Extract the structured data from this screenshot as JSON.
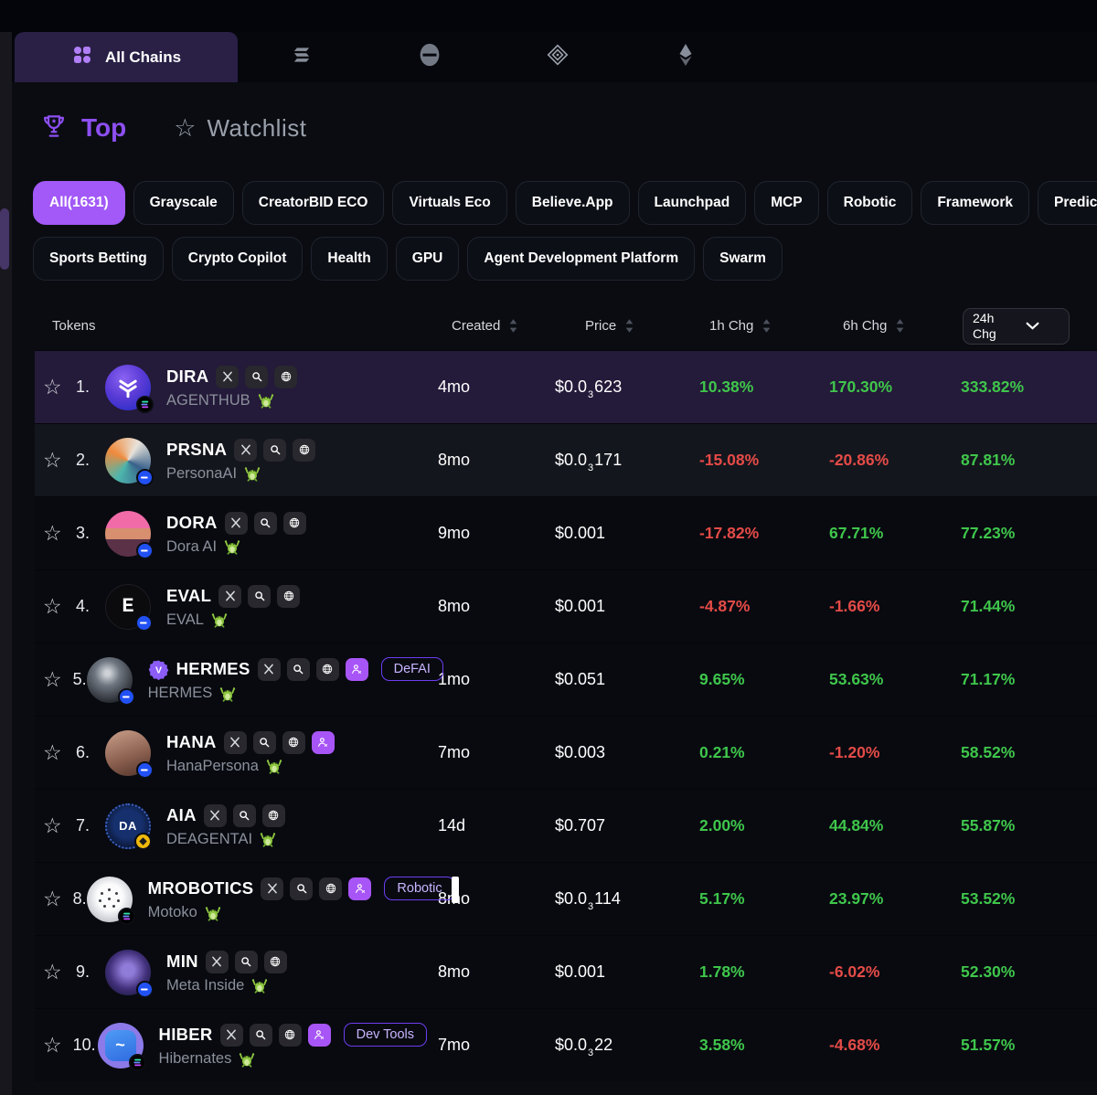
{
  "colors": {
    "positive": "#3fc64b",
    "negative": "#e44b47",
    "accent": "#a259f7",
    "highlight_row": "#241a39"
  },
  "chainbar": {
    "all_chains_label": "All Chains",
    "chains": [
      {
        "name": "solana"
      },
      {
        "name": "circle-chain"
      },
      {
        "name": "ornate-diamond-chain"
      },
      {
        "name": "ethereum"
      }
    ]
  },
  "view_tabs": {
    "top_label": "Top",
    "watchlist_label": "Watchlist"
  },
  "filters": {
    "row1": [
      {
        "label": "All(1631)",
        "active": true
      },
      {
        "label": "Grayscale"
      },
      {
        "label": "CreatorBID ECO"
      },
      {
        "label": "Virtuals Eco"
      },
      {
        "label": "Believe.App"
      },
      {
        "label": "Launchpad"
      },
      {
        "label": "MCP"
      },
      {
        "label": "Robotic"
      },
      {
        "label": "Framework"
      },
      {
        "label": "Predicat"
      }
    ],
    "row2": [
      {
        "label": "Sports Betting"
      },
      {
        "label": "Crypto Copilot"
      },
      {
        "label": "Health"
      },
      {
        "label": "GPU"
      },
      {
        "label": "Agent Development Platform"
      },
      {
        "label": "Swarm"
      }
    ]
  },
  "table": {
    "headers": {
      "tokens": "Tokens",
      "created": "Created",
      "price": "Price",
      "chg1h": "1h Chg",
      "chg6h": "6h Chg",
      "chg24h": "24h Chg"
    },
    "rows": [
      {
        "rank": "1.",
        "symbol": "DIRA",
        "subtitle": "AGENTHUB",
        "avatar": {
          "kind": "dira",
          "label": ""
        },
        "chain": "solana",
        "links": [
          "x",
          "search",
          "globe"
        ],
        "verified": false,
        "category": null,
        "artifact": false,
        "created": "4mo",
        "price": {
          "main": "$0.0",
          "sub": "3",
          "rest": "623"
        },
        "chg1h": "10.38%",
        "chg6h": "170.30%",
        "chg24h": "333.82%",
        "tone": "highlight"
      },
      {
        "rank": "2.",
        "symbol": "PRSNA",
        "subtitle": "PersonaAI",
        "avatar": {
          "kind": "prsna",
          "label": ""
        },
        "chain": "base",
        "links": [
          "x",
          "search",
          "globe"
        ],
        "verified": false,
        "category": null,
        "artifact": false,
        "created": "8mo",
        "price": {
          "main": "$0.0",
          "sub": "3",
          "rest": "171"
        },
        "chg1h": "-15.08%",
        "chg6h": "-20.86%",
        "chg24h": "87.81%",
        "tone": "alt"
      },
      {
        "rank": "3.",
        "symbol": "DORA",
        "subtitle": "Dora AI",
        "avatar": {
          "kind": "dora",
          "label": ""
        },
        "chain": "base",
        "links": [
          "x",
          "search",
          "globe"
        ],
        "verified": false,
        "category": null,
        "artifact": false,
        "created": "9mo",
        "price": {
          "main": "$0.001",
          "sub": null,
          "rest": null
        },
        "chg1h": "-17.82%",
        "chg6h": "67.71%",
        "chg24h": "77.23%",
        "tone": null
      },
      {
        "rank": "4.",
        "symbol": "EVAL",
        "subtitle": "EVAL",
        "avatar": {
          "kind": "eval",
          "label": "E"
        },
        "chain": "base",
        "links": [
          "x",
          "search",
          "globe"
        ],
        "verified": false,
        "category": null,
        "artifact": false,
        "created": "8mo",
        "price": {
          "main": "$0.001",
          "sub": null,
          "rest": null
        },
        "chg1h": "-4.87%",
        "chg6h": "-1.66%",
        "chg24h": "71.44%",
        "tone": null
      },
      {
        "rank": "5.",
        "symbol": "HERMES",
        "subtitle": "HERMES",
        "avatar": {
          "kind": "hermes",
          "label": ""
        },
        "chain": "base",
        "links": [
          "x",
          "search",
          "globe",
          "persona"
        ],
        "verified": true,
        "category": "DeFAI",
        "artifact": false,
        "created": "1mo",
        "price": {
          "main": "$0.051",
          "sub": null,
          "rest": null
        },
        "chg1h": "9.65%",
        "chg6h": "53.63%",
        "chg24h": "71.17%",
        "tone": null
      },
      {
        "rank": "6.",
        "symbol": "HANA",
        "subtitle": "HanaPersona",
        "avatar": {
          "kind": "hana",
          "label": ""
        },
        "chain": "base",
        "links": [
          "x",
          "search",
          "globe",
          "persona"
        ],
        "verified": false,
        "category": null,
        "artifact": false,
        "created": "7mo",
        "price": {
          "main": "$0.003",
          "sub": null,
          "rest": null
        },
        "chg1h": "0.21%",
        "chg6h": "-1.20%",
        "chg24h": "58.52%",
        "tone": null
      },
      {
        "rank": "7.",
        "symbol": "AIA",
        "subtitle": "DEAGENTAI",
        "avatar": {
          "kind": "aia",
          "label": "DA"
        },
        "chain": "bnb",
        "links": [
          "x",
          "search",
          "globe"
        ],
        "verified": false,
        "category": null,
        "artifact": false,
        "created": "14d",
        "price": {
          "main": "$0.707",
          "sub": null,
          "rest": null
        },
        "chg1h": "2.00%",
        "chg6h": "44.84%",
        "chg24h": "55.87%",
        "tone": null
      },
      {
        "rank": "8.",
        "symbol": "MROBOTICS",
        "subtitle": "Motoko",
        "avatar": {
          "kind": "mrobotics",
          "label": ""
        },
        "chain": "solana",
        "links": [
          "x",
          "search",
          "globe",
          "persona"
        ],
        "verified": false,
        "category": "Robotic",
        "artifact": true,
        "created": "8mo",
        "price": {
          "main": "$0.0",
          "sub": "3",
          "rest": "114"
        },
        "chg1h": "5.17%",
        "chg6h": "23.97%",
        "chg24h": "53.52%",
        "tone": null
      },
      {
        "rank": "9.",
        "symbol": "MIN",
        "subtitle": "Meta Inside",
        "avatar": {
          "kind": "min",
          "label": ""
        },
        "chain": "base",
        "links": [
          "x",
          "search",
          "globe"
        ],
        "verified": false,
        "category": null,
        "artifact": false,
        "created": "8mo",
        "price": {
          "main": "$0.001",
          "sub": null,
          "rest": null
        },
        "chg1h": "1.78%",
        "chg6h": "-6.02%",
        "chg24h": "52.30%",
        "tone": null
      },
      {
        "rank": "10.",
        "symbol": "HIBER",
        "subtitle": "Hibernates",
        "avatar": {
          "kind": "hiber",
          "label": ""
        },
        "chain": "solana",
        "links": [
          "x",
          "search",
          "globe",
          "persona"
        ],
        "verified": false,
        "category": "Dev Tools",
        "artifact": false,
        "created": "7mo",
        "price": {
          "main": "$0.0",
          "sub": "3",
          "rest": "22"
        },
        "chg1h": "3.58%",
        "chg6h": "-4.68%",
        "chg24h": "51.57%",
        "tone": null
      }
    ]
  }
}
